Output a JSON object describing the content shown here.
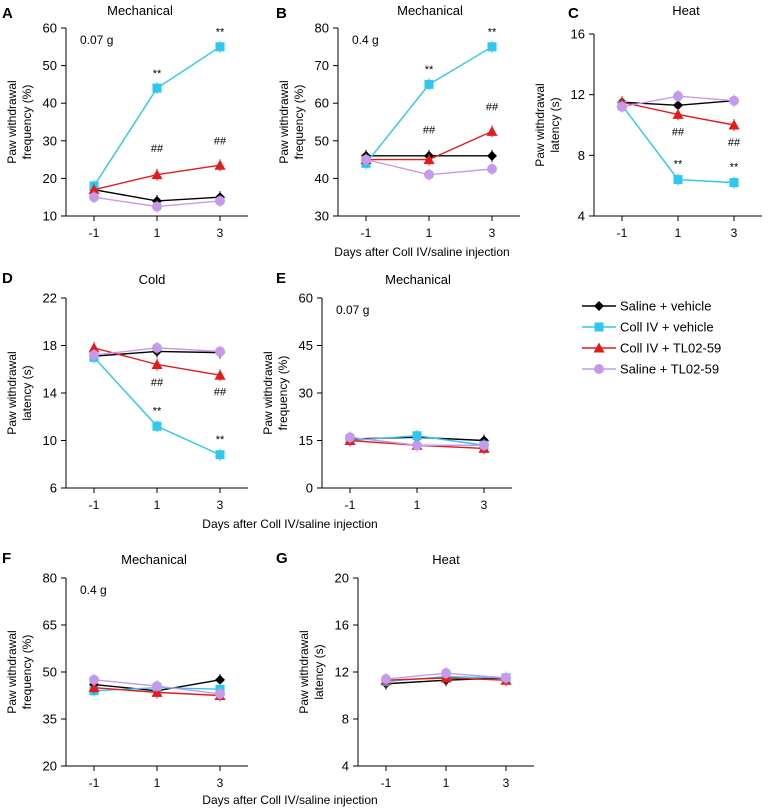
{
  "figure": {
    "xlabel_top": "Days after Coll IV/saline injection",
    "xlabel_mid": "Days after Coll IV/saline injection",
    "xlabel_bottom": "Days after Coll IV/saline injection"
  },
  "legend": [
    {
      "name": "Saline + vehicle",
      "color": "#000000",
      "marker": "diamond"
    },
    {
      "name": "Coll IV + vehicle",
      "color": "#2ec7ee",
      "marker": "square"
    },
    {
      "name": "Coll IV + TL02-59",
      "color": "#e41a1c",
      "marker": "triangle"
    },
    {
      "name": "Saline + TL02-59",
      "color": "#c39bea",
      "marker": "circle"
    }
  ],
  "chart_data": [
    {
      "panel": "A",
      "type": "line",
      "title": "Mechanical",
      "inset_label": "0.07 g",
      "ylabel": [
        "Paw withdrawal",
        "frequency (%)"
      ],
      "categories": [
        "-1",
        "1",
        "3"
      ],
      "ylim": [
        10,
        60
      ],
      "yticks": [
        "10",
        "20",
        "30",
        "40",
        "50",
        "60"
      ],
      "series": [
        {
          "name": "Saline + vehicle",
          "values": [
            17,
            14,
            15
          ]
        },
        {
          "name": "Coll IV + vehicle",
          "values": [
            18,
            44,
            55
          ]
        },
        {
          "name": "Coll IV + TL02-59",
          "values": [
            17,
            21,
            23.5
          ]
        },
        {
          "name": "Saline + TL02-59",
          "values": [
            15,
            12.5,
            14
          ]
        }
      ],
      "annotations": [
        {
          "x": "1",
          "y": 47,
          "text": "**"
        },
        {
          "x": "3",
          "y": 58,
          "text": "**"
        },
        {
          "x": "1",
          "y": 27,
          "text": "##"
        },
        {
          "x": "3",
          "y": 29,
          "text": "##"
        }
      ]
    },
    {
      "panel": "B",
      "type": "line",
      "title": "Mechanical",
      "inset_label": "0.4 g",
      "ylabel": [
        "Paw withdrawal",
        "frequency (%)"
      ],
      "categories": [
        "-1",
        "1",
        "3"
      ],
      "ylim": [
        30,
        80
      ],
      "yticks": [
        "30",
        "40",
        "50",
        "60",
        "70",
        "80"
      ],
      "series": [
        {
          "name": "Saline + vehicle",
          "values": [
            46,
            46,
            46
          ]
        },
        {
          "name": "Coll IV + vehicle",
          "values": [
            44,
            65,
            75
          ]
        },
        {
          "name": "Coll IV + TL02-59",
          "values": [
            45,
            45,
            52.5
          ]
        },
        {
          "name": "Saline + TL02-59",
          "values": [
            45,
            41,
            42.5
          ]
        }
      ],
      "annotations": [
        {
          "x": "1",
          "y": 68,
          "text": "**"
        },
        {
          "x": "3",
          "y": 78,
          "text": "**"
        },
        {
          "x": "1",
          "y": 52,
          "text": "##"
        },
        {
          "x": "3",
          "y": 58,
          "text": "##"
        }
      ]
    },
    {
      "panel": "C",
      "type": "line",
      "title": "Heat",
      "inset_label": "",
      "ylabel": [
        "Paw withdrawal",
        "latency (s)"
      ],
      "categories": [
        "-1",
        "1",
        "3"
      ],
      "ylim": [
        4,
        16
      ],
      "yticks": [
        "4",
        "8",
        "12",
        "16"
      ],
      "series": [
        {
          "name": "Saline + vehicle",
          "values": [
            11.5,
            11.3,
            11.6
          ]
        },
        {
          "name": "Coll IV + vehicle",
          "values": [
            11.3,
            6.4,
            6.2
          ]
        },
        {
          "name": "Coll IV + TL02-59",
          "values": [
            11.5,
            10.7,
            10.0
          ]
        },
        {
          "name": "Saline + TL02-59",
          "values": [
            11.2,
            11.9,
            11.6
          ]
        }
      ],
      "annotations": [
        {
          "x": "1",
          "y": 7.2,
          "text": "**"
        },
        {
          "x": "3",
          "y": 7.0,
          "text": "**"
        },
        {
          "x": "1",
          "y": 9.3,
          "text": "##"
        },
        {
          "x": "3",
          "y": 8.6,
          "text": "##"
        }
      ]
    },
    {
      "panel": "D",
      "type": "line",
      "title": "Cold",
      "inset_label": "",
      "ylabel": [
        "Paw withdrawal",
        "latency (s)"
      ],
      "categories": [
        "-1",
        "1",
        "3"
      ],
      "ylim": [
        6,
        22
      ],
      "yticks": [
        "6",
        "10",
        "14",
        "18",
        "22"
      ],
      "series": [
        {
          "name": "Saline + vehicle",
          "values": [
            17.1,
            17.5,
            17.4
          ]
        },
        {
          "name": "Coll IV + vehicle",
          "values": [
            17.0,
            11.2,
            8.8
          ]
        },
        {
          "name": "Coll IV + TL02-59",
          "values": [
            17.8,
            16.4,
            15.5
          ]
        },
        {
          "name": "Saline + TL02-59",
          "values": [
            17.2,
            17.8,
            17.5
          ]
        }
      ],
      "annotations": [
        {
          "x": "1",
          "y": 12.2,
          "text": "**"
        },
        {
          "x": "3",
          "y": 9.8,
          "text": "**"
        },
        {
          "x": "1",
          "y": 14.6,
          "text": "##"
        },
        {
          "x": "3",
          "y": 13.8,
          "text": "##"
        }
      ]
    },
    {
      "panel": "E",
      "type": "line",
      "title": "Mechanical",
      "inset_label": "0.07 g",
      "ylabel": [
        "Paw withdrawal",
        "frequency (%)"
      ],
      "categories": [
        "-1",
        "1",
        "3"
      ],
      "ylim": [
        0,
        60
      ],
      "yticks": [
        "0",
        "15",
        "30",
        "45",
        "60"
      ],
      "series": [
        {
          "name": "Saline + vehicle",
          "values": [
            15.5,
            16,
            15
          ]
        },
        {
          "name": "Coll IV + vehicle",
          "values": [
            15,
            16.5,
            13.5
          ]
        },
        {
          "name": "Coll IV + TL02-59",
          "values": [
            15,
            13.5,
            12.5
          ]
        },
        {
          "name": "Saline + TL02-59",
          "values": [
            16,
            13.5,
            13.5
          ]
        }
      ],
      "annotations": []
    },
    {
      "panel": "F",
      "type": "line",
      "title": "Mechanical",
      "inset_label": "0.4 g",
      "ylabel": [
        "Paw withdrawal",
        "frequency (%)"
      ],
      "categories": [
        "-1",
        "1",
        "3"
      ],
      "ylim": [
        20,
        80
      ],
      "yticks": [
        "20",
        "35",
        "50",
        "65",
        "80"
      ],
      "series": [
        {
          "name": "Saline + vehicle",
          "values": [
            46,
            44,
            47.5
          ]
        },
        {
          "name": "Coll IV + vehicle",
          "values": [
            44,
            45,
            44.5
          ]
        },
        {
          "name": "Coll IV + TL02-59",
          "values": [
            45,
            43.5,
            42.5
          ]
        },
        {
          "name": "Saline + TL02-59",
          "values": [
            47.5,
            45.5,
            43
          ]
        }
      ],
      "annotations": []
    },
    {
      "panel": "G",
      "type": "line",
      "title": "Heat",
      "inset_label": "",
      "ylabel": [
        "Paw withdrawal",
        "latency (s)"
      ],
      "categories": [
        "-1",
        "1",
        "3"
      ],
      "ylim": [
        4,
        20
      ],
      "yticks": [
        "4",
        "8",
        "12",
        "16",
        "20"
      ],
      "series": [
        {
          "name": "Saline + vehicle",
          "values": [
            11.0,
            11.3,
            11.5
          ]
        },
        {
          "name": "Coll IV + vehicle",
          "values": [
            11.2,
            11.6,
            11.5
          ]
        },
        {
          "name": "Coll IV + TL02-59",
          "values": [
            11.3,
            11.5,
            11.3
          ]
        },
        {
          "name": "Saline + TL02-59",
          "values": [
            11.4,
            11.9,
            11.5
          ]
        }
      ],
      "annotations": []
    }
  ]
}
